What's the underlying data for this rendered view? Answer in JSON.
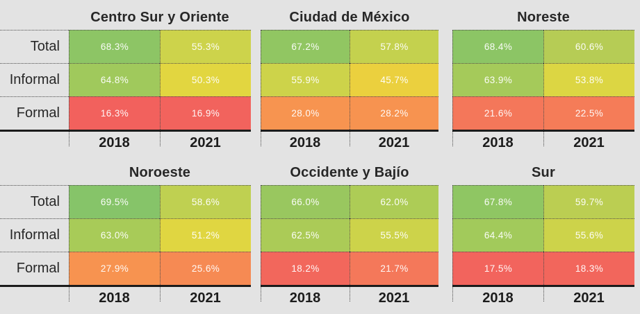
{
  "colors": {
    "background": "#e3e3e3",
    "axis_line": "#1b1b1b",
    "label_text": "#272727",
    "year_text": "#1c1c1c",
    "cell_text": "#ffffff",
    "dotted_line": "#4a4a4a"
  },
  "chart_data": {
    "type": "heatmap",
    "columns": [
      "2018",
      "2021"
    ],
    "rows": [
      "Total",
      "Informal",
      "Formal"
    ],
    "unit": "%",
    "value_range": [
      0,
      100
    ],
    "legend_position": "none",
    "color_scale": "low=red, mid=yellow, high=green",
    "panels": [
      {
        "title": "Centro Sur y Oriente",
        "values": [
          [
            68.3,
            55.3
          ],
          [
            64.8,
            50.3
          ],
          [
            16.3,
            16.9
          ]
        ],
        "labels": [
          [
            "68.3%",
            "55.3%"
          ],
          [
            "64.8%",
            "50.3%"
          ],
          [
            "16.3%",
            "16.9%"
          ]
        ],
        "cell_colors": [
          [
            "#8dc565",
            "#cdd34b"
          ],
          [
            "#a0c95c",
            "#e2d640"
          ],
          [
            "#f2615d",
            "#f2635d"
          ]
        ]
      },
      {
        "title": "Ciudad de México",
        "values": [
          [
            67.2,
            57.8
          ],
          [
            55.9,
            45.7
          ],
          [
            28.0,
            28.2
          ]
        ],
        "labels": [
          [
            "67.2%",
            "57.8%"
          ],
          [
            "55.9%",
            "45.7%"
          ],
          [
            "28.0%",
            "28.2%"
          ]
        ],
        "cell_colors": [
          [
            "#91c662",
            "#c4d14e"
          ],
          [
            "#cdd34a",
            "#ebd03e"
          ],
          [
            "#f79450",
            "#f79350"
          ]
        ]
      },
      {
        "title": "Noreste",
        "values": [
          [
            68.4,
            60.6
          ],
          [
            63.9,
            53.8
          ],
          [
            21.6,
            22.5
          ]
        ],
        "labels": [
          [
            "68.4%",
            "60.6%"
          ],
          [
            "63.9%",
            "53.8%"
          ],
          [
            "21.6%",
            "22.5%"
          ]
        ],
        "cell_colors": [
          [
            "#8cc565",
            "#b6cc55"
          ],
          [
            "#a5ca5a",
            "#dcd643"
          ],
          [
            "#f4775a",
            "#f57c58"
          ]
        ]
      },
      {
        "title": "Noroeste",
        "values": [
          [
            69.5,
            58.6
          ],
          [
            63.0,
            51.2
          ],
          [
            27.9,
            25.6
          ]
        ],
        "labels": [
          [
            "69.5%",
            "58.6%"
          ],
          [
            "63.0%",
            "51.2%"
          ],
          [
            "27.9%",
            "25.6%"
          ]
        ],
        "cell_colors": [
          [
            "#86c469",
            "#bfd051"
          ],
          [
            "#a8cb58",
            "#e0d641"
          ],
          [
            "#f79350",
            "#f68a53"
          ]
        ]
      },
      {
        "title": "Occidente y Bajío",
        "values": [
          [
            66.0,
            62.0
          ],
          [
            62.5,
            55.5
          ],
          [
            18.2,
            21.7
          ]
        ],
        "labels": [
          [
            "66.0%",
            "62.0%"
          ],
          [
            "62.5%",
            "55.5%"
          ],
          [
            "18.2%",
            "21.7%"
          ]
        ],
        "cell_colors": [
          [
            "#99c75f",
            "#adcc56"
          ],
          [
            "#abcb57",
            "#cdd34a"
          ],
          [
            "#f2675c",
            "#f4785a"
          ]
        ]
      },
      {
        "title": "Sur",
        "values": [
          [
            67.8,
            59.7
          ],
          [
            64.4,
            55.6
          ],
          [
            17.5,
            18.3
          ]
        ],
        "labels": [
          [
            "67.8%",
            "59.7%"
          ],
          [
            "64.4%",
            "55.6%"
          ],
          [
            "17.5%",
            "18.3%"
          ]
        ],
        "cell_colors": [
          [
            "#8fc663",
            "#bbce52"
          ],
          [
            "#a2ca5b",
            "#cdd34a"
          ],
          [
            "#f2645d",
            "#f2665c"
          ]
        ]
      }
    ]
  }
}
